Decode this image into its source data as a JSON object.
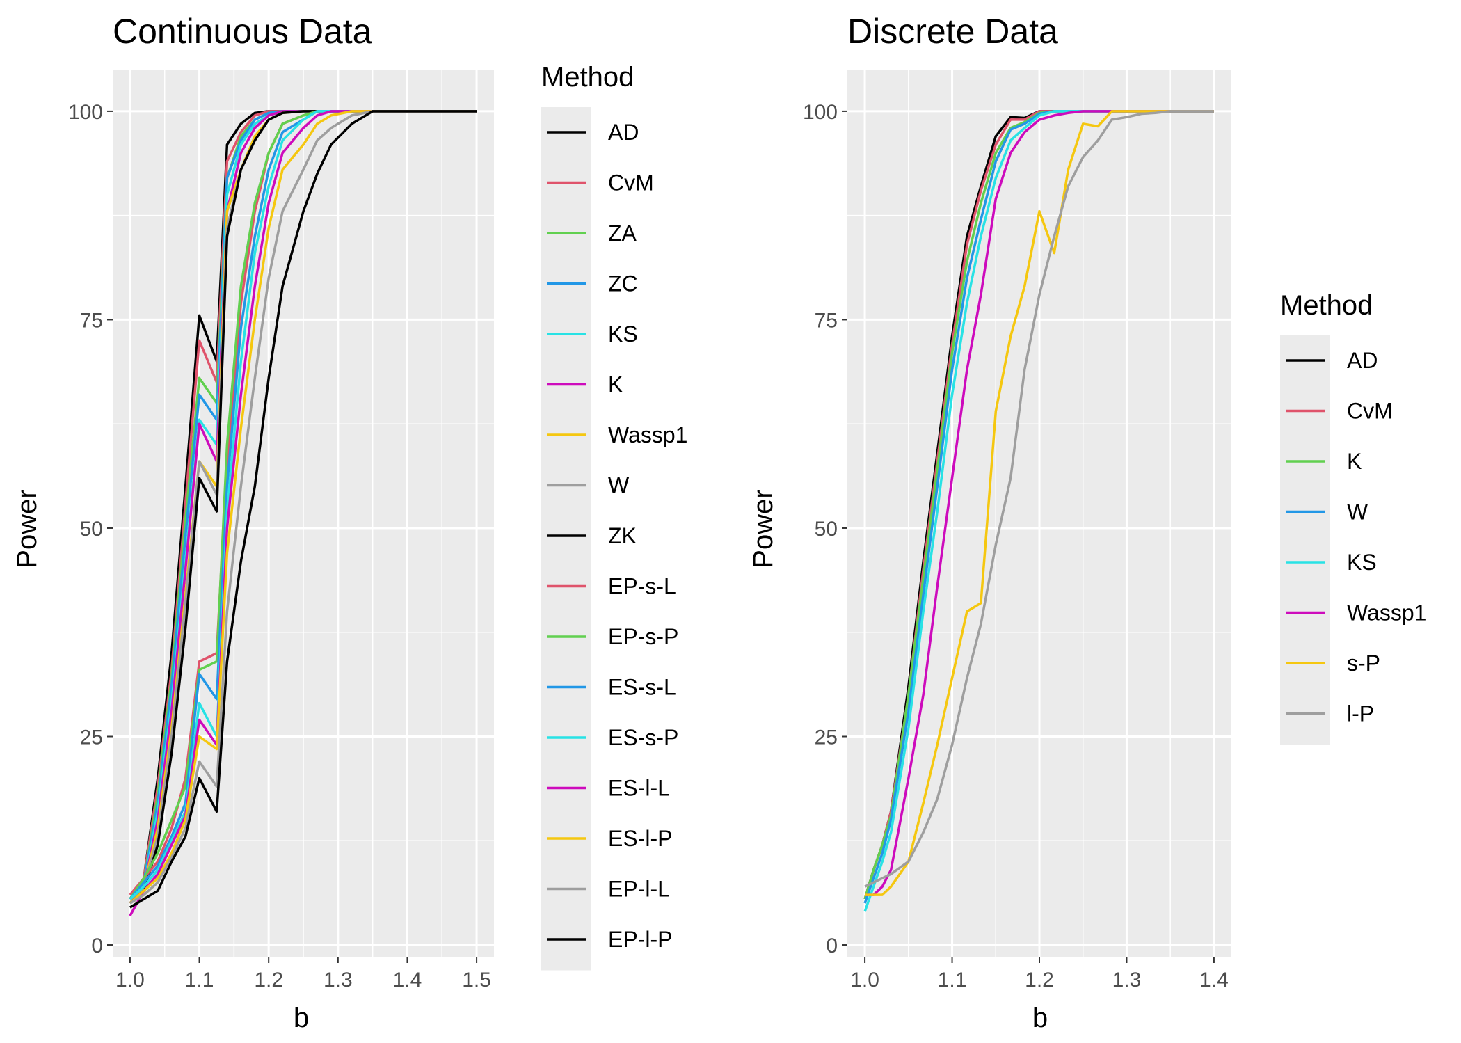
{
  "chart_data": [
    {
      "type": "line",
      "title": "Continuous Data",
      "xlabel": "b",
      "ylabel": "Power",
      "xlim": [
        0.975,
        1.525
      ],
      "ylim": [
        -1.5,
        105
      ],
      "xticks": [
        1.0,
        1.1,
        1.2,
        1.3,
        1.4,
        1.5
      ],
      "xtick_labels": [
        "1.0",
        "1.1",
        "1.2",
        "1.3",
        "1.4",
        "1.5"
      ],
      "yticks": [
        0,
        25,
        50,
        75,
        100
      ],
      "ytick_labels": [
        "0",
        "25",
        "50",
        "75",
        "100"
      ],
      "legend_title": "Method",
      "legend_position": "right",
      "grid": true,
      "x": [
        1.0,
        1.02,
        1.04,
        1.06,
        1.08,
        1.1,
        1.125,
        1.14,
        1.16,
        1.18,
        1.2,
        1.22,
        1.25,
        1.27,
        1.29,
        1.32,
        1.35,
        1.4,
        1.45,
        1.5
      ],
      "series": [
        {
          "name": "AD",
          "color": "#000000",
          "values": [
            5.5,
            8,
            20,
            35,
            55,
            75.5,
            70,
            96,
            98.5,
            99.8,
            100,
            100,
            100,
            100,
            100,
            100,
            100,
            100,
            100,
            100
          ]
        },
        {
          "name": "CvM",
          "color": "#DF536B",
          "values": [
            5.5,
            8,
            19,
            33,
            53,
            72.5,
            67.5,
            94,
            97.5,
            99.5,
            100,
            100,
            100,
            100,
            100,
            100,
            100,
            100,
            100,
            100
          ]
        },
        {
          "name": "ZA",
          "color": "#61D04F",
          "values": [
            5.5,
            7.5,
            18,
            32,
            51,
            68,
            65,
            92,
            97,
            99,
            99.8,
            100,
            100,
            100,
            100,
            100,
            100,
            100,
            100,
            100
          ]
        },
        {
          "name": "ZC",
          "color": "#2297E6",
          "values": [
            5.5,
            7.5,
            17,
            31,
            49,
            66,
            63,
            92,
            96.5,
            99,
            99.8,
            100,
            100,
            100,
            100,
            100,
            100,
            100,
            100,
            100
          ]
        },
        {
          "name": "KS",
          "color": "#28E2E5",
          "values": [
            5.5,
            7,
            16,
            29,
            46,
            63,
            60,
            90,
            96,
            98.5,
            99.5,
            100,
            100,
            100,
            100,
            100,
            100,
            100,
            100,
            100
          ]
        },
        {
          "name": "K",
          "color": "#CD0BBC",
          "values": [
            5,
            7,
            15,
            28,
            45,
            62.5,
            58,
            88,
            95,
            98,
            99.5,
            100,
            100,
            100,
            100,
            100,
            100,
            100,
            100,
            100
          ]
        },
        {
          "name": "Wassp1",
          "color": "#F5C710",
          "values": [
            5,
            7,
            14,
            26,
            42,
            58,
            55,
            88,
            93,
            97,
            99,
            99.8,
            100,
            100,
            100,
            100,
            100,
            100,
            100,
            100
          ]
        },
        {
          "name": "W",
          "color": "#9E9E9E",
          "values": [
            5,
            7,
            13,
            25,
            41,
            58,
            54,
            86,
            93,
            96.5,
            99,
            99.8,
            100,
            100,
            100,
            100,
            100,
            100,
            100,
            100
          ]
        },
        {
          "name": "ZK",
          "color": "#000000",
          "values": [
            5,
            6.5,
            12,
            23,
            38,
            56,
            52,
            85,
            93,
            96.5,
            99,
            99.8,
            100,
            100,
            100,
            100,
            100,
            100,
            100,
            100
          ]
        },
        {
          "name": "EP-s-L",
          "color": "#DF536B",
          "values": [
            6,
            8,
            10,
            14,
            20,
            34,
            35,
            58,
            77,
            88,
            95,
            98.5,
            99.5,
            100,
            100,
            100,
            100,
            100,
            100,
            100
          ]
        },
        {
          "name": "EP-s-P",
          "color": "#61D04F",
          "values": [
            5.5,
            8,
            11,
            15,
            19,
            33,
            34,
            60,
            79,
            89,
            95,
            98.5,
            99.5,
            100,
            100,
            100,
            100,
            100,
            100,
            100
          ]
        },
        {
          "name": "ES-s-L",
          "color": "#2297E6",
          "values": [
            5.5,
            7.5,
            9.5,
            13,
            17,
            32.5,
            29.5,
            55,
            74,
            85,
            93,
            97.5,
            99,
            100,
            100,
            100,
            100,
            100,
            100,
            100
          ]
        },
        {
          "name": "ES-s-P",
          "color": "#28E2E5",
          "values": [
            5.5,
            7,
            9,
            12.5,
            16,
            29,
            25,
            52,
            70,
            83,
            91,
            96.5,
            99,
            100,
            100,
            100,
            100,
            100,
            100,
            100
          ]
        },
        {
          "name": "ES-l-L",
          "color": "#CD0BBC",
          "values": [
            3.5,
            6.5,
            8.5,
            12,
            15.5,
            27,
            24,
            50,
            66,
            79,
            89,
            95,
            98,
            99.5,
            100,
            100,
            100,
            100,
            100,
            100
          ]
        },
        {
          "name": "ES-l-P",
          "color": "#F5C710",
          "values": [
            5,
            6.5,
            8,
            11,
            15,
            25,
            23.5,
            47,
            62,
            75,
            86,
            93,
            96,
            98.5,
            99.5,
            100,
            100,
            100,
            100,
            100
          ]
        },
        {
          "name": "EP-l-L",
          "color": "#9E9E9E",
          "values": [
            5,
            6,
            7.5,
            10.5,
            14,
            22,
            19,
            40,
            55,
            68,
            80,
            88,
            93,
            96.5,
            98,
            99.5,
            100,
            100,
            100,
            100
          ]
        },
        {
          "name": "EP-l-P",
          "color": "#000000",
          "values": [
            4.5,
            5.5,
            6.5,
            10,
            13,
            20,
            16,
            34,
            46,
            55,
            68,
            79,
            88,
            92.5,
            96,
            98.5,
            100,
            100,
            100,
            100
          ]
        }
      ]
    },
    {
      "type": "line",
      "title": "Discrete Data",
      "xlabel": "b",
      "ylabel": "Power",
      "xlim": [
        0.98,
        1.42
      ],
      "ylim": [
        -1.5,
        105
      ],
      "xticks": [
        1.0,
        1.1,
        1.2,
        1.3,
        1.4
      ],
      "xtick_labels": [
        "1.0",
        "1.1",
        "1.2",
        "1.3",
        "1.4"
      ],
      "yticks": [
        0,
        25,
        50,
        75,
        100
      ],
      "ytick_labels": [
        "0",
        "25",
        "50",
        "75",
        "100"
      ],
      "legend_title": "Method",
      "legend_position": "right",
      "grid": true,
      "x": [
        1.0,
        1.01,
        1.02,
        1.03,
        1.05,
        1.067,
        1.083,
        1.1,
        1.117,
        1.133,
        1.15,
        1.167,
        1.183,
        1.2,
        1.217,
        1.233,
        1.25,
        1.267,
        1.283,
        1.3,
        1.317,
        1.333,
        1.35,
        1.4
      ],
      "series": [
        {
          "name": "AD",
          "color": "#000000",
          "values": [
            5.5,
            9,
            12,
            16,
            31,
            46,
            59,
            73,
            85,
            91,
            97,
            99.3,
            99.2,
            100,
            100,
            100,
            100,
            100,
            100,
            100,
            100,
            100,
            100,
            100
          ]
        },
        {
          "name": "CvM",
          "color": "#DF536B",
          "values": [
            5.5,
            9,
            12,
            16,
            30,
            45,
            58,
            72,
            84,
            90.5,
            96,
            99,
            99,
            100,
            100,
            100,
            100,
            100,
            100,
            100,
            100,
            100,
            100,
            100
          ]
        },
        {
          "name": "K",
          "color": "#61D04F",
          "values": [
            5.5,
            9,
            12,
            15.5,
            30,
            44,
            57,
            71,
            82,
            89,
            95,
            98,
            98.7,
            99.8,
            100,
            100,
            100,
            100,
            100,
            100,
            100,
            100,
            100,
            100
          ]
        },
        {
          "name": "W",
          "color": "#2297E6",
          "values": [
            5,
            8,
            11,
            15,
            28,
            42,
            55,
            69,
            80,
            87,
            94,
            97.8,
            98.5,
            99.7,
            100,
            100,
            100,
            100,
            100,
            100,
            100,
            100,
            100,
            100
          ]
        },
        {
          "name": "KS",
          "color": "#28E2E5",
          "values": [
            4,
            7,
            10,
            13.5,
            26,
            40,
            52,
            66,
            77,
            85,
            92,
            96.5,
            98,
            99.5,
            100,
            100,
            100,
            100,
            100,
            100,
            100,
            100,
            100,
            100
          ]
        },
        {
          "name": "Wassp1",
          "color": "#CD0BBC",
          "values": [
            6,
            6,
            7,
            9,
            20,
            30,
            43,
            56,
            69,
            78,
            89.5,
            95,
            97.5,
            99,
            99.5,
            99.8,
            100,
            100,
            100,
            100,
            100,
            100,
            100,
            100
          ]
        },
        {
          "name": "s-P",
          "color": "#F5C710",
          "values": [
            6,
            6,
            6,
            7,
            10,
            17,
            24,
            32,
            40,
            41,
            64,
            73,
            79,
            88,
            83,
            93,
            98.5,
            98.2,
            100,
            100,
            100,
            100,
            100,
            100
          ]
        },
        {
          "name": "l-P",
          "color": "#9E9E9E",
          "values": [
            7,
            7.5,
            8,
            8.5,
            10,
            13.5,
            17.5,
            24,
            32,
            38.5,
            48,
            56,
            69,
            78,
            85,
            91,
            94.5,
            96.5,
            99,
            99.3,
            99.7,
            99.8,
            100,
            100
          ]
        }
      ]
    }
  ]
}
